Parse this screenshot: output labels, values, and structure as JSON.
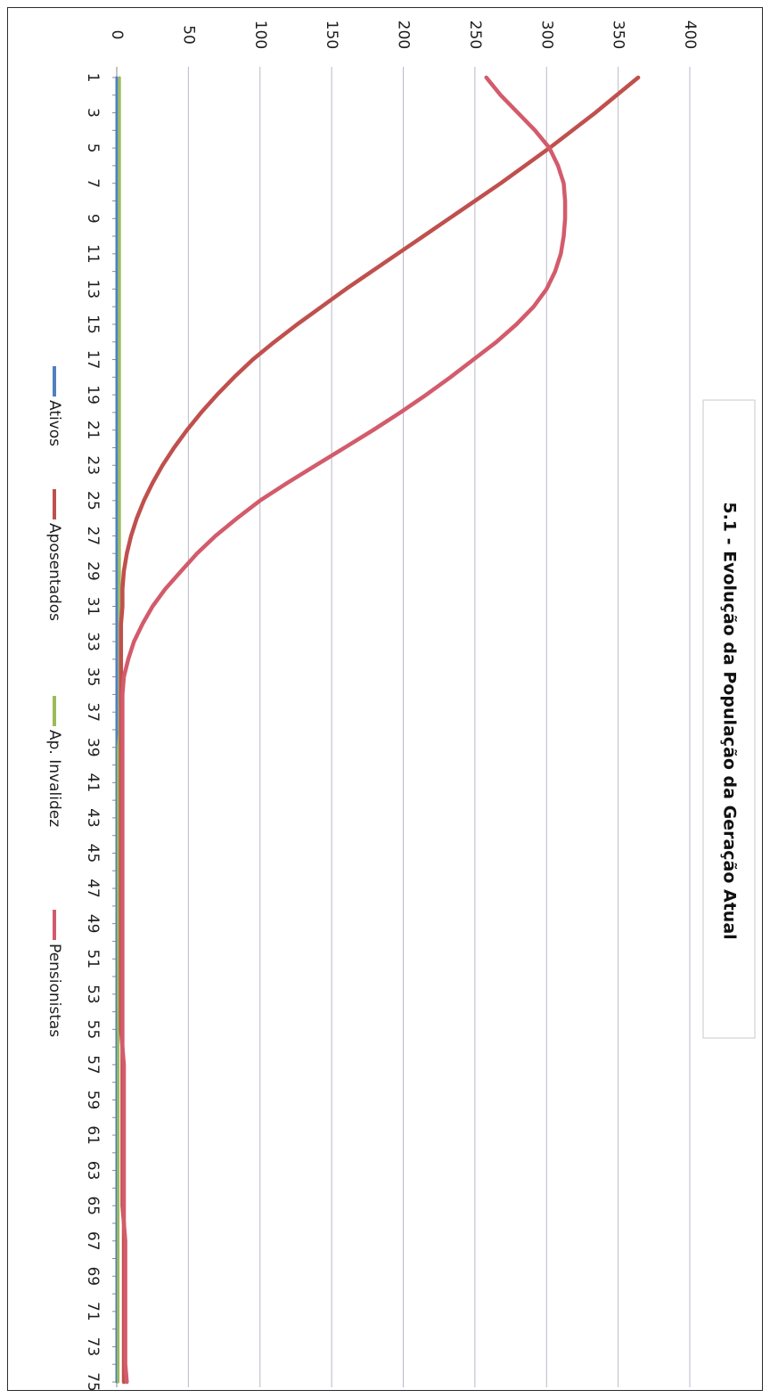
{
  "chart_data": {
    "type": "line",
    "title": "5.1 - Evolução da População da Geração Atual",
    "xlabel": "",
    "ylabel": "",
    "ylim": [
      0,
      400
    ],
    "y_ticks": [
      0,
      50,
      100,
      150,
      200,
      250,
      300,
      350,
      400
    ],
    "x": [
      1,
      2,
      3,
      4,
      5,
      6,
      7,
      8,
      9,
      10,
      11,
      12,
      13,
      14,
      15,
      16,
      17,
      18,
      19,
      20,
      21,
      22,
      23,
      24,
      25,
      26,
      27,
      28,
      29,
      30,
      31,
      32,
      33,
      34,
      35,
      36,
      37,
      38,
      39,
      40,
      41,
      42,
      43,
      44,
      45,
      46,
      47,
      48,
      49,
      50,
      51,
      52,
      53,
      54,
      55,
      56,
      57,
      58,
      59,
      60,
      61,
      62,
      63,
      64,
      65,
      66,
      67,
      68,
      69,
      70,
      71,
      72,
      73,
      74,
      75
    ],
    "x_tick_labels": [
      "1",
      "3",
      "5",
      "7",
      "9",
      "11",
      "13",
      "15",
      "17",
      "19",
      "21",
      "23",
      "25",
      "27",
      "29",
      "31",
      "33",
      "35",
      "37",
      "39",
      "41",
      "43",
      "45",
      "47",
      "49",
      "51",
      "53",
      "55",
      "57",
      "59",
      "61",
      "63",
      "65",
      "67",
      "69",
      "71",
      "73",
      "75"
    ],
    "grid": true,
    "legend_position": "bottom",
    "series": [
      {
        "name": "Ativos",
        "color": "#4f81bd",
        "values": [
          0,
          0,
          0,
          0,
          0,
          0,
          0,
          0,
          0,
          0,
          0,
          0,
          0,
          0,
          0,
          0,
          0,
          0,
          0,
          0,
          0,
          0,
          0,
          0,
          0,
          0,
          0,
          0,
          0,
          0,
          0,
          0,
          0,
          0,
          0,
          0,
          0,
          0,
          0,
          0,
          0,
          0,
          0,
          0,
          0,
          0,
          0,
          0,
          0,
          0,
          0,
          0,
          0,
          0,
          0,
          0,
          0,
          0,
          0,
          0,
          0,
          0,
          0,
          0,
          0,
          0,
          0,
          0,
          0,
          0,
          0,
          0,
          0,
          0,
          0
        ]
      },
      {
        "name": "Aposentados",
        "color": "#c0504d",
        "values": [
          364,
          349,
          334,
          318,
          302,
          285,
          268,
          250,
          232,
          214,
          196,
          178,
          160,
          143,
          126,
          110,
          95,
          82,
          70,
          59,
          49,
          40,
          32,
          25,
          19,
          14,
          10,
          7,
          5,
          4,
          4,
          3,
          3,
          3,
          3,
          3,
          3,
          3,
          3,
          3,
          3,
          3,
          3,
          3,
          3,
          3,
          3,
          3,
          3,
          3,
          3,
          3,
          3,
          3,
          3,
          4,
          4,
          4,
          4,
          4,
          4,
          4,
          4,
          4,
          4,
          5,
          5,
          5,
          5,
          5,
          5,
          5,
          5,
          5,
          5
        ]
      },
      {
        "name": "Ap. Invalidez",
        "color": "#9bbb59",
        "values": [
          2,
          2,
          2,
          2,
          2,
          2,
          2,
          2,
          2,
          2,
          2,
          2,
          2,
          2,
          2,
          2,
          2,
          2,
          2,
          2,
          2,
          2,
          2,
          2,
          2,
          2,
          2,
          2,
          2,
          2,
          2,
          2,
          2,
          2,
          2,
          2,
          2,
          2,
          1,
          1,
          1,
          1,
          1,
          1,
          1,
          1,
          1,
          1,
          1,
          1,
          1,
          1,
          1,
          1,
          1,
          1,
          1,
          1,
          1,
          1,
          1,
          1,
          1,
          1,
          1,
          1,
          1,
          1,
          1,
          1,
          1,
          1,
          1,
          1,
          1
        ]
      },
      {
        "name": "Pensionistas",
        "color": "#d35b6b",
        "values": [
          258,
          268,
          280,
          292,
          302,
          308,
          312,
          313,
          313,
          312,
          310,
          306,
          300,
          291,
          279,
          265,
          249,
          233,
          216,
          198,
          179,
          159,
          139,
          119,
          100,
          84,
          69,
          56,
          45,
          34,
          25,
          18,
          12,
          8,
          5,
          4,
          4,
          4,
          4,
          4,
          4,
          4,
          4,
          4,
          4,
          4,
          4,
          4,
          4,
          4,
          4,
          4,
          4,
          4,
          4,
          4,
          5,
          5,
          5,
          5,
          5,
          5,
          5,
          5,
          5,
          5,
          6,
          6,
          6,
          6,
          6,
          6,
          6,
          6,
          7
        ]
      }
    ]
  }
}
